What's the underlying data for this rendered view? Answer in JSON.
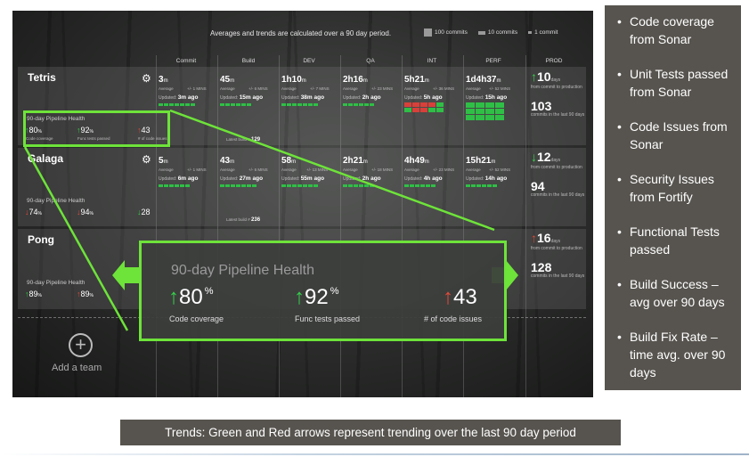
{
  "dashboard": {
    "top_note": "Averages and trends are calculated over a 90 day period.",
    "legend": [
      {
        "label": "100 commits"
      },
      {
        "label": "10 commits"
      },
      {
        "label": "1 commit"
      }
    ],
    "columns": [
      "Commit",
      "Build",
      "DEV",
      "QA",
      "INT",
      "PERF",
      "PROD"
    ],
    "teams": [
      {
        "name": "Tetris",
        "health_title": "90-day Pipeline Health",
        "coverage": "80",
        "coverage_label": "Code coverage",
        "func": "92",
        "func_label": "Func tests passed",
        "issues": "43",
        "issues_label": "# of code issues",
        "stages": [
          {
            "value": "3",
            "unit": "m",
            "avg": "Average",
            "delta": "+/- 1 MINS",
            "updated_val": "3m",
            "updated_suffix": " ago"
          },
          {
            "value": "45",
            "unit": "m",
            "avg": "Average",
            "delta": "+/- 6 MINS",
            "updated_val": "15m",
            "updated_suffix": " ago"
          },
          {
            "value": "1h10",
            "unit": "m",
            "avg": "Average",
            "delta": "+/- 7 MINS",
            "updated_val": "38m",
            "updated_suffix": " ago"
          },
          {
            "value": "2h16",
            "unit": "m",
            "avg": "Average",
            "delta": "+/- 23 MINS",
            "updated_val": "2h",
            "updated_suffix": " ago"
          },
          {
            "value": "5h21",
            "unit": "m",
            "avg": "Average",
            "delta": "+/- 36 MINS",
            "updated_val": "5h",
            "updated_suffix": " ago"
          },
          {
            "value": "1d4h37",
            "unit": "m",
            "avg": "Average",
            "delta": "+/- 52 MINS",
            "updated_val": "15h",
            "updated_suffix": " ago"
          }
        ],
        "latest": "Latest build #",
        "latest_num": "129",
        "prod_big": "10",
        "prod_unit": "days",
        "prod_note": "from commit to production",
        "commits": "103",
        "commits_note": "commits in the last 90 days"
      },
      {
        "name": "Galaga",
        "health_title": "90-day Pipeline Health",
        "coverage": "74",
        "func": "94",
        "issues": "28",
        "stages": [
          {
            "value": "5",
            "unit": "m",
            "avg": "Average",
            "delta": "+/- 1 MINS",
            "updated_val": "6m",
            "updated_suffix": " ago"
          },
          {
            "value": "43",
            "unit": "m",
            "avg": "Average",
            "delta": "+/- 6 MINS",
            "updated_val": "27m",
            "updated_suffix": " ago"
          },
          {
            "value": "58",
            "unit": "m",
            "avg": "Average",
            "delta": "+/- 13 MINS",
            "updated_val": "55m",
            "updated_suffix": " ago"
          },
          {
            "value": "2h21",
            "unit": "m",
            "avg": "Average",
            "delta": "+/- 18 MINS",
            "updated_val": "2h",
            "updated_suffix": " ago"
          },
          {
            "value": "4h49",
            "unit": "m",
            "avg": "Average",
            "delta": "+/- 23 MINS",
            "updated_val": "4h",
            "updated_suffix": " ago"
          },
          {
            "value": "15h21",
            "unit": "m",
            "avg": "Average",
            "delta": "+/- 52 MINS",
            "updated_val": "14h",
            "updated_suffix": " ago"
          }
        ],
        "latest": "Latest build #",
        "latest_num": "236",
        "prod_big": "12",
        "prod_unit": "days",
        "prod_note": "from commit to production",
        "commits": "94",
        "commits_note": "commits in the last 90 days"
      },
      {
        "name": "Pong",
        "health_title": "90-day Pipeline Health",
        "coverage": "89",
        "func": "89",
        "prod_big": "16",
        "prod_unit": "days",
        "prod_note": "from commit to production",
        "commits": "128",
        "commits_note": "commits in the last 90 days"
      }
    ],
    "add_team": "Add a team",
    "zoom": {
      "title": "90-day Pipeline Health",
      "coverage": "80",
      "coverage_label": "Code coverage",
      "func": "92",
      "func_label": "Func tests passed",
      "issues": "43",
      "issues_label": "# of code issues",
      "pct": "%"
    }
  },
  "bullets": [
    "Code coverage from Sonar",
    "Unit Tests passed from Sonar",
    "Code Issues from Sonar",
    "Security Issues from Fortify",
    "Functional Tests passed",
    "Build Success – avg over 90 days",
    "Build Fix Rate – time avg. over 90 days"
  ],
  "caption": "Trends: Green and Red arrows represent trending over the last 90 day period",
  "colors": {
    "green": "#6ee33a",
    "trend_up": "#35d04a",
    "trend_down": "#e24a3a",
    "panel": "#57544f"
  }
}
